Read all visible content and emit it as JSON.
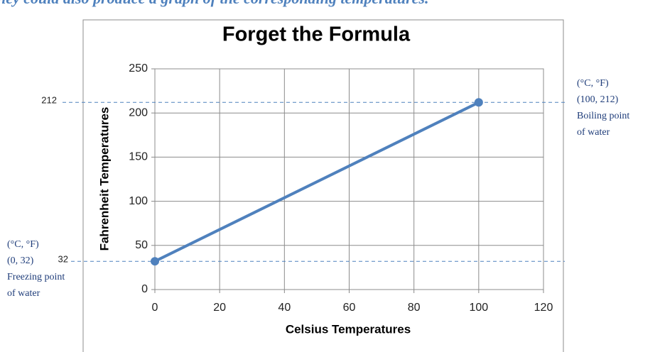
{
  "caption": "hey could also produce a graph of the corresponding temperatures.",
  "chart_data": {
    "type": "line",
    "title": "Forget the Formula",
    "x_label": "Celsius Temperatures",
    "y_label": "Fahrenheit Temperatures",
    "series": [
      {
        "color": "#4f81bd",
        "x": [
          0,
          100
        ],
        "values": [
          32,
          212
        ]
      }
    ],
    "xlim": [
      0,
      120
    ],
    "xticks": [
      0,
      20,
      40,
      60,
      80,
      100,
      120
    ],
    "ylim": [
      0,
      250
    ],
    "yticks": [
      0,
      50,
      100,
      150,
      200,
      250
    ],
    "grid": true,
    "reference_lines": [
      212,
      32
    ],
    "annotations": [
      [
        "(°C, °F)",
        "(100, 212)",
        "Boiling point",
        "of water"
      ],
      [
        "(°C, °F)",
        "(0, 32)",
        "Freezing point",
        "of water"
      ]
    ]
  }
}
